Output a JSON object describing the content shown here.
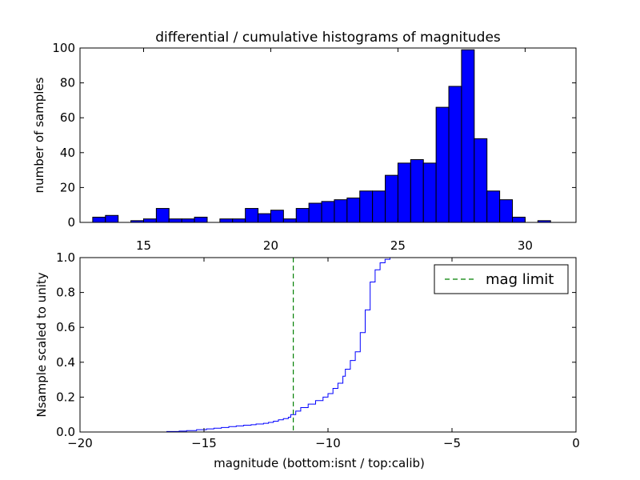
{
  "chart_data": [
    {
      "type": "bar",
      "title": "differential / cumulative histograms of magnitudes",
      "ylabel": "number of samples",
      "xlim": [
        12.5,
        32
      ],
      "ylim": [
        0,
        100
      ],
      "xticks": [
        15,
        20,
        25,
        30
      ],
      "yticks": [
        0,
        20,
        40,
        60,
        80,
        100
      ],
      "bin_width": 0.5,
      "bar_color": "#0000ff",
      "bins": [
        {
          "left": 13.0,
          "value": 3
        },
        {
          "left": 13.5,
          "value": 4
        },
        {
          "left": 14.5,
          "value": 1
        },
        {
          "left": 15.0,
          "value": 2
        },
        {
          "left": 15.5,
          "value": 8
        },
        {
          "left": 16.0,
          "value": 2
        },
        {
          "left": 16.5,
          "value": 2
        },
        {
          "left": 17.0,
          "value": 3
        },
        {
          "left": 18.0,
          "value": 2
        },
        {
          "left": 18.5,
          "value": 2
        },
        {
          "left": 19.0,
          "value": 8
        },
        {
          "left": 19.5,
          "value": 5
        },
        {
          "left": 20.0,
          "value": 7
        },
        {
          "left": 20.5,
          "value": 2
        },
        {
          "left": 21.0,
          "value": 8
        },
        {
          "left": 21.5,
          "value": 11
        },
        {
          "left": 22.0,
          "value": 12
        },
        {
          "left": 22.5,
          "value": 13
        },
        {
          "left": 23.0,
          "value": 14
        },
        {
          "left": 23.5,
          "value": 18
        },
        {
          "left": 24.0,
          "value": 18
        },
        {
          "left": 24.5,
          "value": 27
        },
        {
          "left": 25.0,
          "value": 34
        },
        {
          "left": 25.5,
          "value": 36
        },
        {
          "left": 26.0,
          "value": 34
        },
        {
          "left": 26.5,
          "value": 66
        },
        {
          "left": 27.0,
          "value": 78
        },
        {
          "left": 27.5,
          "value": 99
        },
        {
          "left": 28.0,
          "value": 48
        },
        {
          "left": 28.5,
          "value": 18
        },
        {
          "left": 29.0,
          "value": 13
        },
        {
          "left": 29.5,
          "value": 3
        },
        {
          "left": 30.5,
          "value": 1
        }
      ]
    },
    {
      "type": "line",
      "xlabel": "magnitude (bottom:isnt / top:calib)",
      "ylabel": "Nsample scaled to unity",
      "xlim": [
        -20,
        0
      ],
      "ylim": [
        0,
        1.0
      ],
      "xticks": [
        -20,
        -15,
        -10,
        -5,
        0
      ],
      "yticks": [
        0.0,
        0.2,
        0.4,
        0.6,
        0.8,
        1.0
      ],
      "step_color": "#0000ff",
      "steps": [
        [
          -20.0,
          0.0
        ],
        [
          -16.5,
          0.003
        ],
        [
          -16.0,
          0.005
        ],
        [
          -15.7,
          0.008
        ],
        [
          -15.3,
          0.013
        ],
        [
          -14.9,
          0.018
        ],
        [
          -14.6,
          0.022
        ],
        [
          -14.3,
          0.026
        ],
        [
          -14.0,
          0.031
        ],
        [
          -13.7,
          0.035
        ],
        [
          -13.4,
          0.039
        ],
        [
          -13.1,
          0.042
        ],
        [
          -12.9,
          0.046
        ],
        [
          -12.6,
          0.05
        ],
        [
          -12.4,
          0.055
        ],
        [
          -12.2,
          0.062
        ],
        [
          -12.0,
          0.07
        ],
        [
          -11.8,
          0.077
        ],
        [
          -11.6,
          0.085
        ],
        [
          -11.5,
          0.1
        ],
        [
          -11.3,
          0.12
        ],
        [
          -11.1,
          0.14
        ],
        [
          -10.8,
          0.16
        ],
        [
          -10.5,
          0.18
        ],
        [
          -10.2,
          0.2
        ],
        [
          -10.0,
          0.22
        ],
        [
          -9.8,
          0.25
        ],
        [
          -9.6,
          0.28
        ],
        [
          -9.4,
          0.32
        ],
        [
          -9.3,
          0.36
        ],
        [
          -9.1,
          0.41
        ],
        [
          -8.9,
          0.46
        ],
        [
          -8.7,
          0.57
        ],
        [
          -8.5,
          0.7
        ],
        [
          -8.3,
          0.86
        ],
        [
          -8.1,
          0.93
        ],
        [
          -7.9,
          0.97
        ],
        [
          -7.7,
          0.99
        ],
        [
          -7.5,
          1.0
        ],
        [
          0.0,
          1.0
        ]
      ],
      "mag_limit": -11.4,
      "mag_limit_color": "#008000",
      "legend": {
        "label": "mag limit",
        "position": "top-right"
      }
    }
  ]
}
